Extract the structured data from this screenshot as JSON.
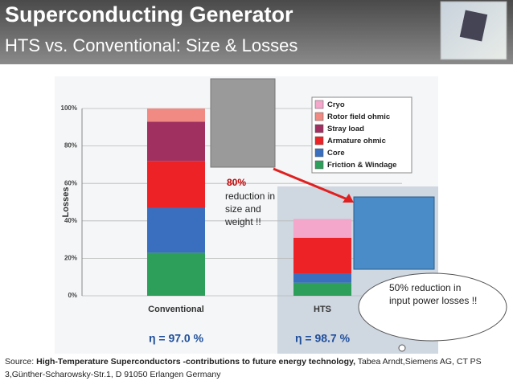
{
  "slide": {
    "title": "Superconducting Generator",
    "subtitle": "HTS vs. Conventional: Size & Losses",
    "source_prefix": "Source: ",
    "source_bold": "High-Temperature Superconductors -contributions to future energy technology,",
    "source_rest": " Tabea Arndt,Siemens AG, CT PS 3,Günther-Scharowsky-Str.1, D 91050 Erlangen Germany",
    "callout_bold": "80%",
    "callout_text": "reduction in size and weight !!",
    "cloud_text": "50% reduction in input power losses !!"
  },
  "chart_data": {
    "type": "stacked_bar",
    "y_label": "Losses",
    "categories": [
      "Conventional",
      "HTS"
    ],
    "series": [
      {
        "name": "Friction & Windage",
        "color": "#2e9e5b",
        "values": [
          23,
          7
        ]
      },
      {
        "name": "Core",
        "color": "#3a6fc0",
        "values": [
          24,
          5
        ]
      },
      {
        "name": "Armature ohmic",
        "color": "#ec2227",
        "values": [
          25,
          19
        ]
      },
      {
        "name": "Stray load",
        "color": "#a0305f",
        "values": [
          21,
          0
        ]
      },
      {
        "name": "Rotor field ohmic",
        "color": "#f08a82",
        "values": [
          7,
          0
        ]
      },
      {
        "name": "Cryo",
        "color": "#f4a6cb",
        "values": [
          0,
          10
        ]
      }
    ],
    "annotations": [
      "η = 97.0 %",
      "η = 98.7 %"
    ],
    "ylim": [
      0,
      100
    ],
    "yticks": [
      {
        "value": 0,
        "label": "0%"
      },
      {
        "value": 20,
        "label": "20%"
      },
      {
        "value": 40,
        "label": "40%"
      },
      {
        "value": 60,
        "label": "60%"
      },
      {
        "value": 80,
        "label": "80%"
      },
      {
        "value": 100,
        "label": "100%"
      }
    ],
    "grid": true
  }
}
